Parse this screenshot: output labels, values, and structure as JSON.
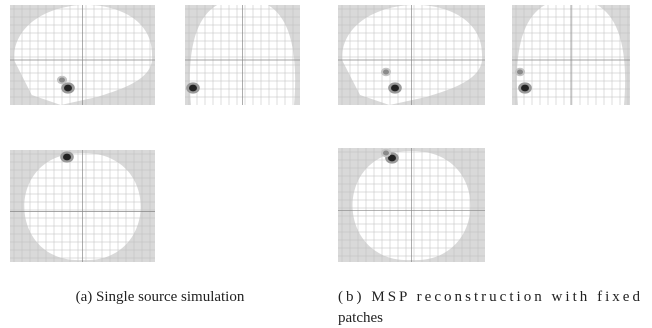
{
  "panels": [
    {
      "caption": [
        "(a) Single source simulation"
      ]
    },
    {
      "caption": [
        "(b) MSP reconstruction with fixed",
        "patches"
      ]
    }
  ]
}
